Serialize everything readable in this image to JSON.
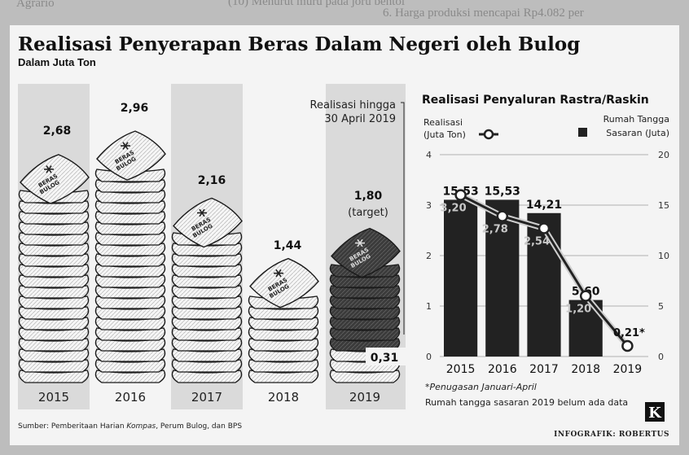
{
  "background_text": {
    "line1": "Agrario",
    "line2": "6. Harga produksi mencapai Rp4.082 per",
    "line3": "(10) Menurut muru pada joru bentoi"
  },
  "header": {
    "title": "Realisasi Penyerapan Beras Dalam Negeri oleh Bulog",
    "subtitle": "Dalam Juta Ton"
  },
  "colors": {
    "bar": "#222222",
    "sack_light": "#f5f5f5",
    "sack_dark": "#3a3a3a",
    "panel": "#f4f4f4",
    "band": "#dcdcdc"
  },
  "sack_label": [
    "BERAS",
    "BULOG"
  ],
  "left_chart": {
    "note": [
      "Realisasi hingga",
      "30 April 2019"
    ],
    "target_label": "(target)",
    "columns": [
      {
        "year": "2015",
        "value_label": "2,68",
        "value": 2.68
      },
      {
        "year": "2016",
        "value_label": "2,96",
        "value": 2.96
      },
      {
        "year": "2017",
        "value_label": "2,16",
        "value": 2.16
      },
      {
        "year": "2018",
        "value_label": "1,44",
        "value": 1.44
      },
      {
        "year": "2019",
        "value_label": "1,80",
        "value": 1.8,
        "actual_label": "0,31",
        "actual": 0.31
      }
    ]
  },
  "right_chart": {
    "title": "Realisasi Penyaluran Rastra/Raskin",
    "legend_line": [
      "Realisasi",
      "(Juta Ton)"
    ],
    "legend_bar": [
      "Rumah Tangga",
      "Sasaran (Juta)"
    ],
    "footnote1": "*Penugasan Januari-April",
    "footnote2": "Rumah tangga sasaran 2019 belum ada data"
  },
  "chart_data": {
    "type": "bar",
    "title": "Realisasi Penyaluran Rastra/Raskin",
    "categories": [
      "2015",
      "2016",
      "2017",
      "2018",
      "2019"
    ],
    "ylim_left": [
      0,
      4
    ],
    "yticks_left": [
      "0",
      "1",
      "2",
      "3",
      "4"
    ],
    "ylim_right": [
      0,
      20
    ],
    "yticks_right": [
      "0",
      "5",
      "10",
      "15",
      "20"
    ],
    "series": [
      {
        "name": "Rumah Tangga Sasaran (Juta)",
        "kind": "bar",
        "axis": "right",
        "values": [
          15.53,
          15.53,
          14.21,
          5.6,
          null
        ],
        "labels": [
          "15,53",
          "15,53",
          "14,21",
          "5,60",
          ""
        ]
      },
      {
        "name": "Realisasi (Juta Ton)",
        "kind": "line",
        "axis": "left",
        "values": [
          3.2,
          2.78,
          2.54,
          1.2,
          0.21
        ],
        "labels": [
          "3,20",
          "2,78",
          "2,54",
          "1,20",
          "0,21*"
        ]
      }
    ]
  },
  "footer": {
    "source_prefix": "Sumber: Pemberitaan Harian ",
    "source_italic": "Kompas",
    "source_suffix": ", Perum Bulog, dan BPS",
    "logo_letter": "K",
    "credit": "INFOGRAFIK: ROBERTUS"
  }
}
